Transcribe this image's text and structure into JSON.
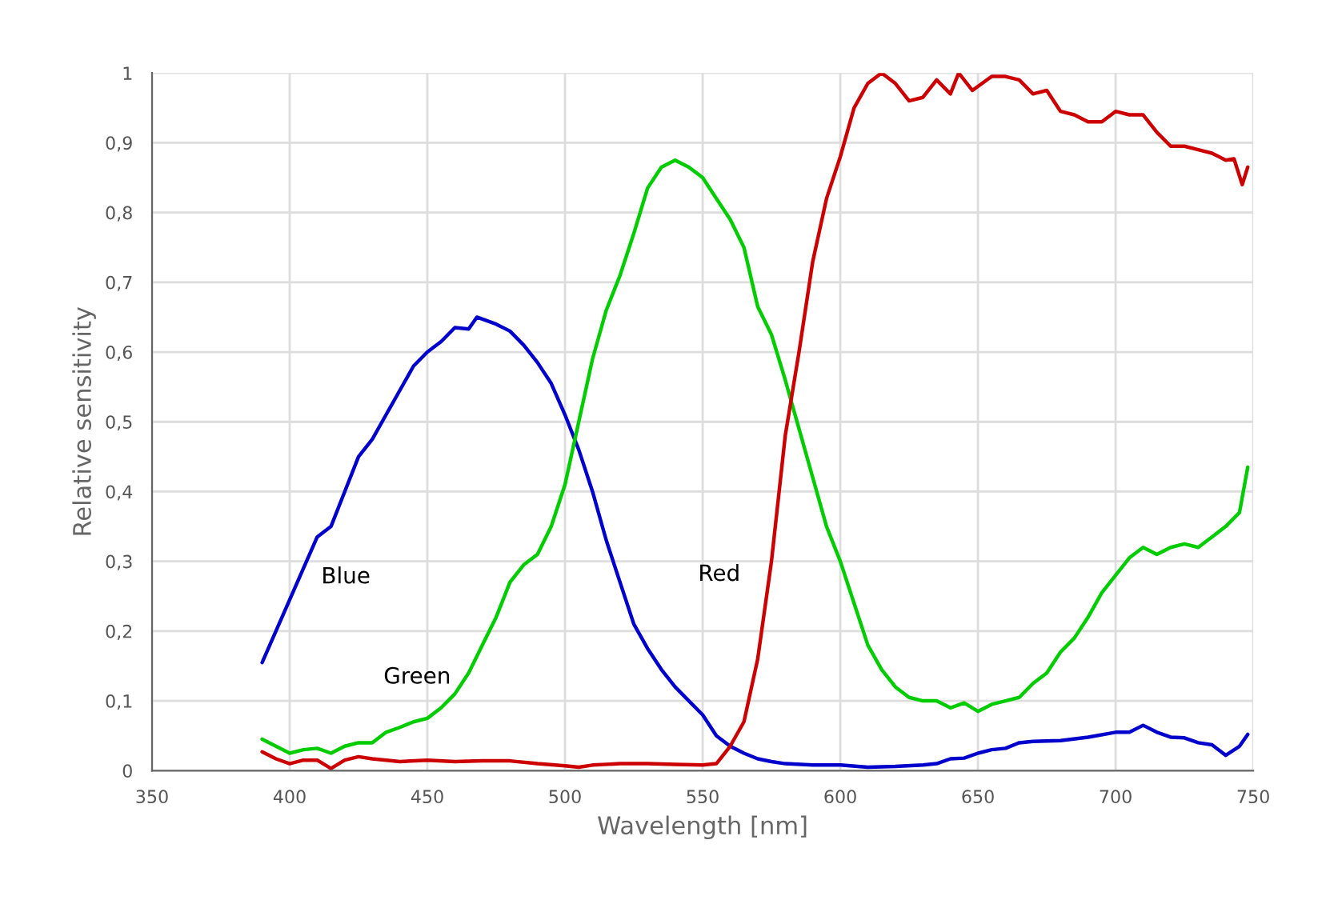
{
  "chart_data": {
    "type": "line",
    "xlabel": "Wavelength [nm]",
    "ylabel": "Relative sensitivity",
    "xlim": [
      350,
      750
    ],
    "xticks": [
      350,
      400,
      450,
      500,
      550,
      600,
      650,
      700,
      750
    ],
    "ylim": [
      0,
      1
    ],
    "yticks": [
      {
        "value": 0,
        "label": "0"
      },
      {
        "value": 0.1,
        "label": "0,1"
      },
      {
        "value": 0.2,
        "label": "0,2"
      },
      {
        "value": 0.3,
        "label": "0,3"
      },
      {
        "value": 0.4,
        "label": "0,4"
      },
      {
        "value": 0.5,
        "label": "0,5"
      },
      {
        "value": 0.6,
        "label": "0,6"
      },
      {
        "value": 0.7,
        "label": "0,7"
      },
      {
        "value": 0.8,
        "label": "0,8"
      },
      {
        "value": 0.9,
        "label": "0,9"
      },
      {
        "value": 1,
        "label": "1"
      }
    ],
    "grid": true,
    "legend": false,
    "marker": "none",
    "line_style": "solid",
    "series": [
      {
        "name": "Blue",
        "color": "#0000cc",
        "x": [
          390,
          395,
          400,
          405,
          410,
          415,
          420,
          425,
          430,
          435,
          440,
          445,
          450,
          455,
          460,
          465,
          468,
          475,
          480,
          485,
          490,
          495,
          500,
          505,
          510,
          515,
          520,
          525,
          530,
          535,
          540,
          545,
          550,
          555,
          560,
          565,
          570,
          575,
          580,
          590,
          600,
          610,
          620,
          630,
          635,
          640,
          645,
          650,
          655,
          660,
          665,
          670,
          680,
          690,
          700,
          705,
          710,
          715,
          720,
          725,
          730,
          735,
          740,
          745,
          748
        ],
        "values": [
          0.155,
          0.2,
          0.245,
          0.29,
          0.335,
          0.35,
          0.4,
          0.45,
          0.475,
          0.51,
          0.545,
          0.58,
          0.6,
          0.615,
          0.635,
          0.633,
          0.65,
          0.64,
          0.63,
          0.61,
          0.585,
          0.555,
          0.51,
          0.46,
          0.4,
          0.33,
          0.27,
          0.21,
          0.175,
          0.145,
          0.12,
          0.1,
          0.08,
          0.05,
          0.035,
          0.025,
          0.017,
          0.013,
          0.01,
          0.008,
          0.008,
          0.005,
          0.006,
          0.008,
          0.01,
          0.017,
          0.018,
          0.025,
          0.03,
          0.032,
          0.04,
          0.042,
          0.043,
          0.048,
          0.055,
          0.055,
          0.065,
          0.055,
          0.048,
          0.047,
          0.04,
          0.037,
          0.022,
          0.035,
          0.052
        ]
      },
      {
        "name": "Green",
        "color": "#00cc00",
        "x": [
          390,
          395,
          400,
          405,
          410,
          415,
          420,
          425,
          430,
          435,
          440,
          445,
          450,
          455,
          460,
          465,
          470,
          475,
          480,
          485,
          490,
          495,
          500,
          505,
          510,
          515,
          520,
          525,
          530,
          535,
          540,
          545,
          550,
          555,
          560,
          565,
          570,
          575,
          580,
          585,
          590,
          595,
          600,
          605,
          610,
          615,
          620,
          625,
          630,
          635,
          640,
          645,
          650,
          655,
          660,
          665,
          670,
          675,
          680,
          685,
          690,
          695,
          700,
          705,
          710,
          715,
          720,
          725,
          730,
          735,
          740,
          745,
          748
        ],
        "values": [
          0.045,
          0.035,
          0.025,
          0.03,
          0.032,
          0.025,
          0.035,
          0.04,
          0.04,
          0.055,
          0.062,
          0.07,
          0.075,
          0.09,
          0.11,
          0.14,
          0.18,
          0.22,
          0.27,
          0.295,
          0.31,
          0.35,
          0.41,
          0.5,
          0.59,
          0.66,
          0.71,
          0.77,
          0.835,
          0.865,
          0.875,
          0.865,
          0.85,
          0.82,
          0.79,
          0.75,
          0.665,
          0.625,
          0.56,
          0.49,
          0.42,
          0.35,
          0.3,
          0.24,
          0.18,
          0.145,
          0.12,
          0.105,
          0.1,
          0.1,
          0.09,
          0.097,
          0.085,
          0.095,
          0.1,
          0.105,
          0.125,
          0.14,
          0.17,
          0.19,
          0.22,
          0.255,
          0.28,
          0.305,
          0.32,
          0.31,
          0.32,
          0.325,
          0.32,
          0.335,
          0.35,
          0.37,
          0.435
        ]
      },
      {
        "name": "Red",
        "color": "#cc0000",
        "x": [
          390,
          395,
          400,
          405,
          410,
          415,
          420,
          425,
          430,
          435,
          440,
          450,
          460,
          470,
          480,
          490,
          500,
          505,
          510,
          520,
          530,
          540,
          550,
          555,
          560,
          565,
          570,
          575,
          580,
          585,
          590,
          595,
          600,
          605,
          610,
          615,
          620,
          625,
          630,
          635,
          640,
          643,
          648,
          655,
          660,
          665,
          670,
          675,
          680,
          685,
          690,
          695,
          700,
          705,
          710,
          715,
          720,
          725,
          730,
          735,
          740,
          743,
          746,
          748
        ],
        "values": [
          0.027,
          0.017,
          0.01,
          0.015,
          0.015,
          0.003,
          0.015,
          0.02,
          0.017,
          0.015,
          0.013,
          0.015,
          0.013,
          0.014,
          0.014,
          0.01,
          0.007,
          0.005,
          0.008,
          0.01,
          0.01,
          0.009,
          0.008,
          0.01,
          0.035,
          0.07,
          0.16,
          0.3,
          0.48,
          0.6,
          0.73,
          0.82,
          0.88,
          0.95,
          0.985,
          1.0,
          0.985,
          0.96,
          0.965,
          0.99,
          0.97,
          1.0,
          0.975,
          0.995,
          0.995,
          0.99,
          0.97,
          0.975,
          0.945,
          0.94,
          0.93,
          0.93,
          0.945,
          0.94,
          0.94,
          0.915,
          0.895,
          0.895,
          0.89,
          0.885,
          0.875,
          0.877,
          0.84,
          0.865
        ]
      }
    ]
  }
}
